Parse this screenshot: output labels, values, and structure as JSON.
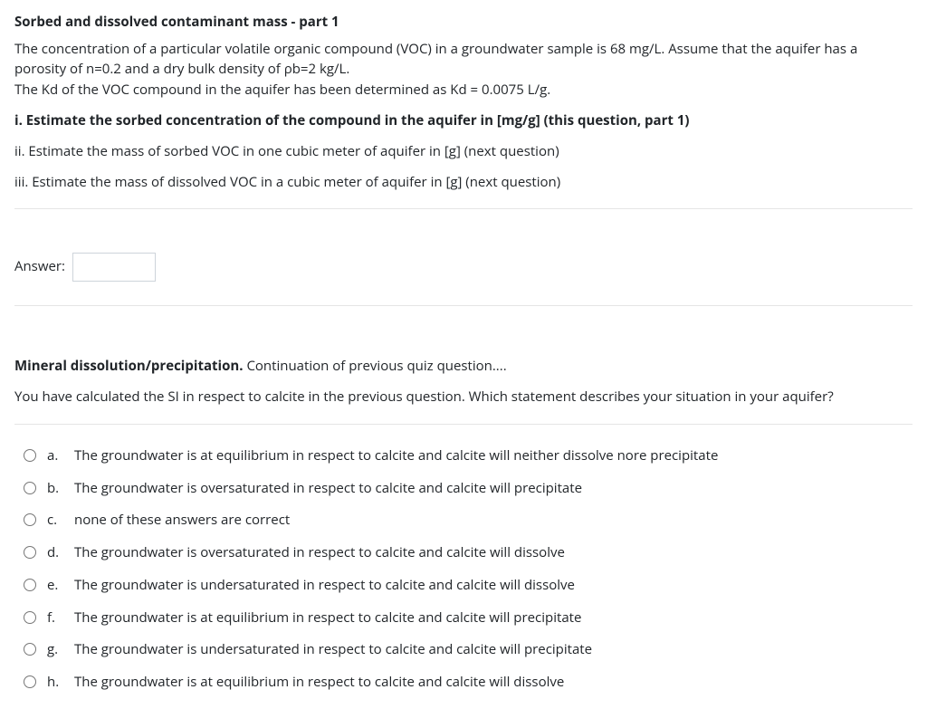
{
  "q1": {
    "title": "Sorbed and dissolved contaminant mass - part 1",
    "para1": "The concentration of a particular volatile organic compound (VOC) in a groundwater sample is 68 mg/L. Assume that the aquifer has a porosity of n=0.2 and a dry bulk density of ρb=2 kg/L.",
    "para2": "The Kd of the VOC compound in the aquifer has been determined as Kd = 0.0075 L/g.",
    "sub_i": "i. Estimate the sorbed concentration of the compound in the aquifer in [mg/g] (this question, part 1)",
    "sub_ii": "ii. Estimate the mass of sorbed VOC in one cubic meter of aquifer in [g] (next question)",
    "sub_iii": "iii. Estimate the mass of dissolved VOC in a cubic meter of aquifer in [g] (next question)",
    "answer_label": "Answer:",
    "answer_value": ""
  },
  "q2": {
    "title_lead": "Mineral dissolution/precipitation.",
    "title_rest": " Continuation of previous quiz question....",
    "prompt": "You have calculated the SI in respect to calcite in the previous question. Which statement describes your situation in your aquifer?",
    "options": [
      {
        "letter": "a.",
        "text": "The groundwater is at equilibrium in respect to calcite and calcite will neither dissolve nore precipitate"
      },
      {
        "letter": "b.",
        "text": "The groundwater is oversaturated in respect to calcite and calcite will precipitate"
      },
      {
        "letter": "c.",
        "text": "none of these answers are correct"
      },
      {
        "letter": "d.",
        "text": "The groundwater is oversaturated in respect to calcite and calcite will dissolve"
      },
      {
        "letter": "e.",
        "text": "The groundwater is undersaturated in respect to calcite and calcite will dissolve"
      },
      {
        "letter": "f.",
        "text": "The groundwater is at equilibrium in respect to calcite and calcite will precipitate"
      },
      {
        "letter": "g.",
        "text": "The groundwater is undersaturated in respect to calcite and calcite will precipitate"
      },
      {
        "letter": "h.",
        "text": "The groundwater is at equilibrium in respect to calcite and calcite will dissolve"
      }
    ]
  },
  "colors": {
    "text": "#212529",
    "divider": "#e5e5e5",
    "input_border": "#ced4da",
    "background": "#ffffff"
  }
}
